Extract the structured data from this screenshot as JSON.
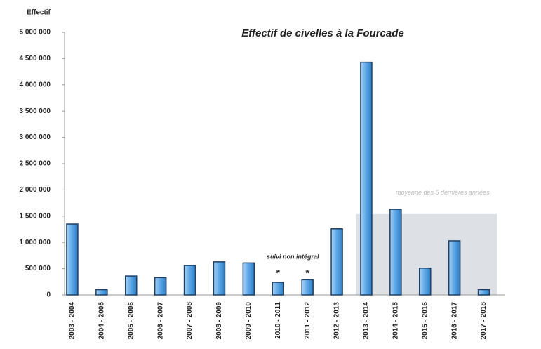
{
  "chart_data": {
    "type": "bar",
    "title": "Effectif de civelles à la Fourcade",
    "y_label": "Effectif",
    "categories": [
      "2003 - 2004",
      "2004 - 2005",
      "2005 - 2006",
      "2006 - 2007",
      "2007 - 2008",
      "2008 - 2009",
      "2009 - 2010",
      "2010 - 2011",
      "2011 - 2012",
      "2012 - 2013",
      "2013 - 2014",
      "2014 - 2015",
      "2015 - 2016",
      "2016 - 2017",
      "2017 - 2018"
    ],
    "values": [
      1350000,
      100000,
      360000,
      330000,
      560000,
      630000,
      610000,
      240000,
      290000,
      1260000,
      4430000,
      1630000,
      510000,
      1030000,
      100000
    ],
    "color": "#3d8fd6",
    "ylim": [
      0,
      5000000
    ],
    "yticks": [
      0,
      {
        "value": 500000,
        "label": "500 000"
      },
      {
        "value": 1000000,
        "label": "1 000 000"
      },
      {
        "value": 1500000,
        "label": "1 500 000"
      },
      {
        "value": 2000000,
        "label": "2 000 000"
      },
      {
        "value": 2500000,
        "label": "2 500 000"
      },
      {
        "value": 3000000,
        "label": "3 000 000"
      },
      {
        "value": 3500000,
        "label": "3 500 000"
      },
      {
        "value": 4000000,
        "label": "4 000 000"
      },
      {
        "value": 4500000,
        "label": "4 500 000"
      },
      {
        "value": 5000000,
        "label": "5 000 000"
      }
    ],
    "grid": false,
    "average": {
      "label": "moyenne des 5 dernières années",
      "value": 1540000,
      "from": "2013 - 2014",
      "to": "2017 - 2018",
      "color": "#d4d8de"
    },
    "annotation": {
      "text": "suivi non intégral",
      "marker": "*",
      "categories": [
        "2010 - 2011",
        "2011 - 2012"
      ]
    }
  }
}
